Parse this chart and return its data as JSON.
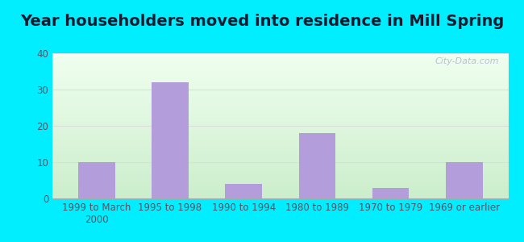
{
  "title": "Year householders moved into residence in Mill Spring",
  "categories": [
    "1999 to March\n2000",
    "1995 to 1998",
    "1990 to 1994",
    "1980 to 1989",
    "1970 to 1979",
    "1969 or earlier"
  ],
  "values": [
    10,
    32,
    4,
    18,
    3,
    10
  ],
  "bar_color": "#b39ddb",
  "ylim": [
    0,
    40
  ],
  "yticks": [
    0,
    10,
    20,
    30,
    40
  ],
  "background_outer": "#00eeff",
  "gradient_top": "#f0fff0",
  "gradient_bottom": "#cceecc",
  "grid_color": "#dddddd",
  "title_fontsize": 14,
  "tick_fontsize": 8.5,
  "watermark": "City-Data.com",
  "title_color": "#1a1a2e",
  "tick_color": "#555566"
}
